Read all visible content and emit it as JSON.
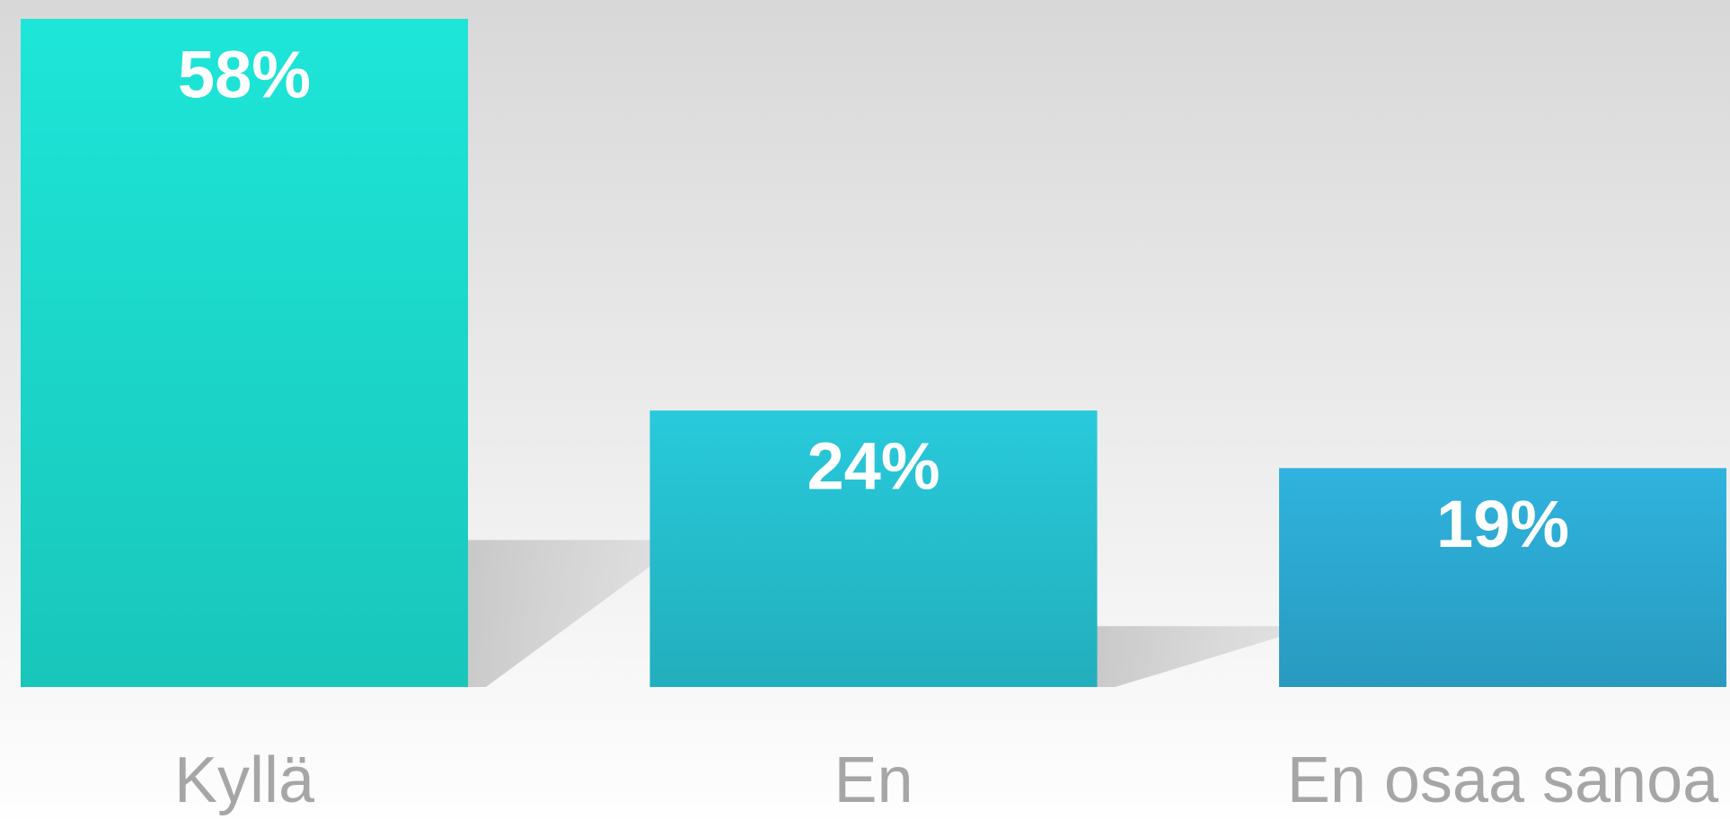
{
  "chart_data": {
    "type": "bar",
    "categories": [
      "Kyllä",
      "En",
      "En osaa sanoa"
    ],
    "values": [
      58,
      24,
      19
    ],
    "value_labels": [
      "58%",
      "24%",
      "19%"
    ],
    "colors": [
      "#1de6d8",
      "#28cadb",
      "#2fb3de"
    ]
  }
}
